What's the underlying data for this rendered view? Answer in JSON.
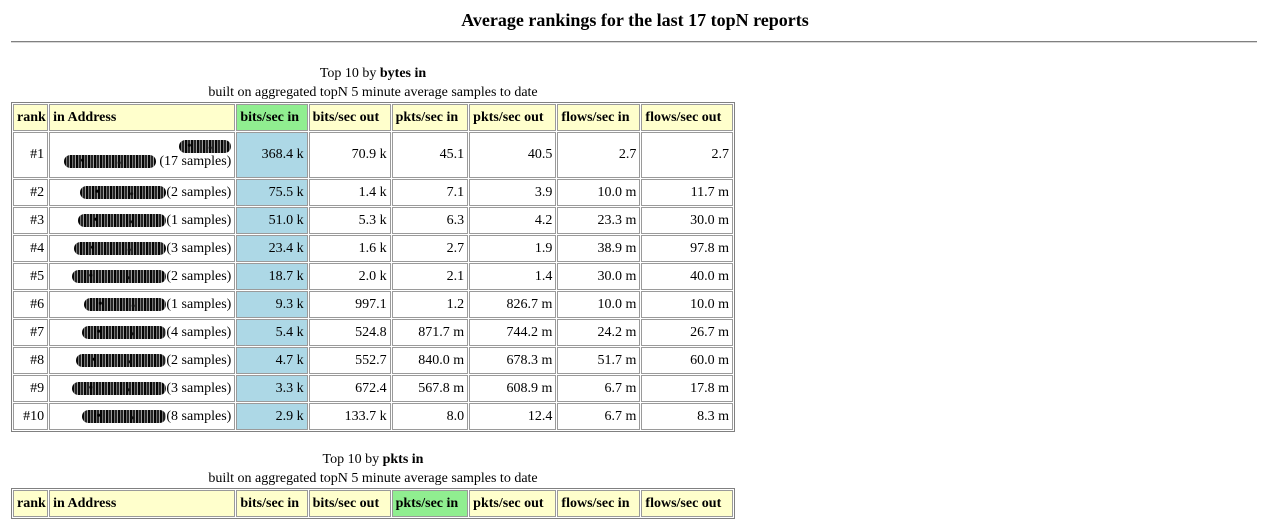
{
  "page_title": "Average rankings for the last 17 topN reports",
  "reports": [
    {
      "caption_prefix": "Top 10 by ",
      "caption_metric": "bytes in",
      "subcaption": "built on aggregated topN 5 minute average samples to date",
      "sorted_column": "bits/sec in",
      "headers": [
        "rank",
        "in Address",
        "bits/sec in",
        "bits/sec out",
        "pkts/sec in",
        "pkts/sec out",
        "flows/sec in",
        "flows/sec out"
      ],
      "rows": [
        {
          "rank": "#1",
          "samples": "(17 samples)",
          "bits_in": "368.4 k",
          "bits_out": "70.9 k",
          "pkts_in": "45.1",
          "pkts_out": "40.5",
          "flows_in": "2.7",
          "flows_out": "2.7"
        },
        {
          "rank": "#2",
          "samples": "(2 samples)",
          "bits_in": "75.5 k",
          "bits_out": "1.4 k",
          "pkts_in": "7.1",
          "pkts_out": "3.9",
          "flows_in": "10.0 m",
          "flows_out": "11.7 m"
        },
        {
          "rank": "#3",
          "samples": "(1 samples)",
          "bits_in": "51.0 k",
          "bits_out": "5.3 k",
          "pkts_in": "6.3",
          "pkts_out": "4.2",
          "flows_in": "23.3 m",
          "flows_out": "30.0 m"
        },
        {
          "rank": "#4",
          "samples": "(3 samples)",
          "bits_in": "23.4 k",
          "bits_out": "1.6 k",
          "pkts_in": "2.7",
          "pkts_out": "1.9",
          "flows_in": "38.9 m",
          "flows_out": "97.8 m"
        },
        {
          "rank": "#5",
          "samples": "(2 samples)",
          "bits_in": "18.7 k",
          "bits_out": "2.0 k",
          "pkts_in": "2.1",
          "pkts_out": "1.4",
          "flows_in": "30.0 m",
          "flows_out": "40.0 m"
        },
        {
          "rank": "#6",
          "samples": "(1 samples)",
          "bits_in": "9.3 k",
          "bits_out": "997.1",
          "pkts_in": "1.2",
          "pkts_out": "826.7 m",
          "flows_in": "10.0 m",
          "flows_out": "10.0 m"
        },
        {
          "rank": "#7",
          "samples": "(4 samples)",
          "bits_in": "5.4 k",
          "bits_out": "524.8",
          "pkts_in": "871.7 m",
          "pkts_out": "744.2 m",
          "flows_in": "24.2 m",
          "flows_out": "26.7 m"
        },
        {
          "rank": "#8",
          "samples": "(2 samples)",
          "bits_in": "4.7 k",
          "bits_out": "552.7",
          "pkts_in": "840.0 m",
          "pkts_out": "678.3 m",
          "flows_in": "51.7 m",
          "flows_out": "60.0 m"
        },
        {
          "rank": "#9",
          "samples": "(3 samples)",
          "bits_in": "3.3 k",
          "bits_out": "672.4",
          "pkts_in": "567.8 m",
          "pkts_out": "608.9 m",
          "flows_in": "6.7 m",
          "flows_out": "17.8 m"
        },
        {
          "rank": "#10",
          "samples": "(8 samples)",
          "bits_in": "2.9 k",
          "bits_out": "133.7 k",
          "pkts_in": "8.0",
          "pkts_out": "12.4",
          "flows_in": "6.7 m",
          "flows_out": "8.3 m"
        }
      ]
    },
    {
      "caption_prefix": "Top 10 by ",
      "caption_metric": "pkts in",
      "subcaption": "built on aggregated topN 5 minute average samples to date",
      "sorted_column": "pkts/sec in",
      "headers": [
        "rank",
        "in Address",
        "bits/sec in",
        "bits/sec out",
        "pkts/sec in",
        "pkts/sec out",
        "flows/sec in",
        "flows/sec out"
      ],
      "rows": []
    }
  ],
  "colors": {
    "header_bg": "#ffffcc",
    "sorted_header_bg": "#90ee90",
    "sorted_cell_bg": "#add8e6"
  },
  "redacted_address_icon": "blurred-ip-address"
}
